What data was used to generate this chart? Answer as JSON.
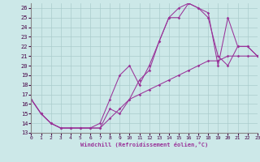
{
  "xlabel": "Windchill (Refroidissement éolien,°C)",
  "xlim": [
    0,
    23
  ],
  "ylim": [
    13,
    26.5
  ],
  "yticks": [
    13,
    14,
    15,
    16,
    17,
    18,
    19,
    20,
    21,
    22,
    23,
    24,
    25,
    26
  ],
  "xticks": [
    0,
    1,
    2,
    3,
    4,
    5,
    6,
    7,
    8,
    9,
    10,
    11,
    12,
    13,
    14,
    15,
    16,
    17,
    18,
    19,
    20,
    21,
    22,
    23
  ],
  "background_color": "#cce8e8",
  "grid_color": "#aacccc",
  "line_color": "#993399",
  "line1_x": [
    0,
    1,
    2,
    3,
    4,
    5,
    6,
    7,
    8,
    9,
    10,
    11,
    12,
    13,
    14,
    15,
    16,
    17,
    18,
    19,
    20,
    21,
    22,
    23
  ],
  "line1_y": [
    16.5,
    15.0,
    14.0,
    13.5,
    13.5,
    13.5,
    13.5,
    13.5,
    15.5,
    15.0,
    16.5,
    18.5,
    19.5,
    22.5,
    25.0,
    25.0,
    26.5,
    26.0,
    25.5,
    20.0,
    25.0,
    22.0,
    22.0,
    21.0
  ],
  "line2_x": [
    0,
    1,
    2,
    3,
    4,
    5,
    6,
    7,
    8,
    9,
    10,
    11,
    12,
    13,
    14,
    15,
    16,
    17,
    18,
    19,
    20,
    21,
    22,
    23
  ],
  "line2_y": [
    16.5,
    15.0,
    14.0,
    13.5,
    13.5,
    13.5,
    13.5,
    14.0,
    16.5,
    19.0,
    20.0,
    18.0,
    20.0,
    22.5,
    25.0,
    26.0,
    26.5,
    26.0,
    25.0,
    21.0,
    20.0,
    22.0,
    22.0,
    21.0
  ],
  "line3_x": [
    0,
    1,
    2,
    3,
    4,
    5,
    6,
    7,
    8,
    9,
    10,
    11,
    12,
    13,
    14,
    15,
    16,
    17,
    18,
    19,
    20,
    21,
    22,
    23
  ],
  "line3_y": [
    16.5,
    15.0,
    14.0,
    13.5,
    13.5,
    13.5,
    13.5,
    13.5,
    14.5,
    15.5,
    16.5,
    17.0,
    17.5,
    18.0,
    18.5,
    19.0,
    19.5,
    20.0,
    20.5,
    20.5,
    21.0,
    21.0,
    21.0,
    21.0
  ]
}
